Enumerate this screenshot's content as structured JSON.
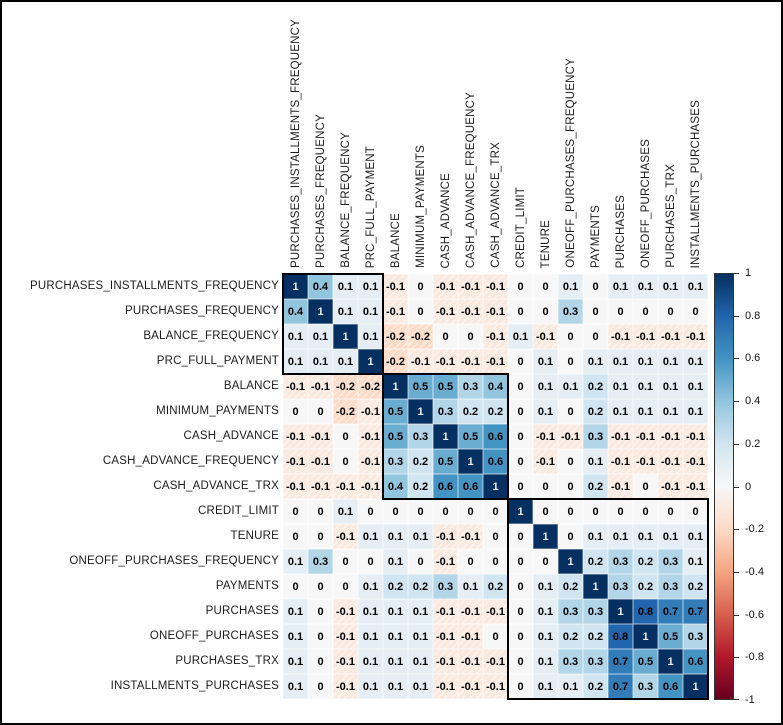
{
  "chart_data": {
    "type": "heatmap",
    "title": "",
    "description": "Correlation matrix heatmap with three diagonal cluster boxes, RdBu colormap, negative cells hatched",
    "labels": [
      "PURCHASES_INSTALLMENTS_FREQUENCY",
      "PURCHASES_FREQUENCY",
      "BALANCE_FREQUENCY",
      "PRC_FULL_PAYMENT",
      "BALANCE",
      "MINIMUM_PAYMENTS",
      "CASH_ADVANCE",
      "CASH_ADVANCE_FREQUENCY",
      "CASH_ADVANCE_TRX",
      "CREDIT_LIMIT",
      "TENURE",
      "ONEOFF_PURCHASES_FREQUENCY",
      "PAYMENTS",
      "PURCHASES",
      "ONEOFF_PURCHASES",
      "PURCHASES_TRX",
      "INSTALLMENTS_PURCHASES"
    ],
    "matrix": [
      [
        1,
        0.4,
        0.1,
        0.1,
        -0.1,
        0,
        -0.1,
        -0.1,
        -0.1,
        0,
        0,
        0.1,
        0,
        0.1,
        0.1,
        0.1,
        0.1
      ],
      [
        0.4,
        1,
        0.1,
        0.1,
        -0.1,
        0,
        -0.1,
        -0.1,
        -0.1,
        0,
        0,
        0.3,
        0,
        0,
        0,
        0,
        0
      ],
      [
        0.1,
        0.1,
        1,
        0.1,
        -0.2,
        -0.2,
        0,
        0,
        -0.1,
        0.1,
        -0.1,
        0,
        0,
        -0.1,
        -0.1,
        -0.1,
        -0.1
      ],
      [
        0.1,
        0.1,
        0.1,
        1,
        -0.2,
        -0.1,
        -0.1,
        -0.1,
        -0.1,
        0,
        0.1,
        0,
        0.1,
        0.1,
        0.1,
        0.1,
        0.1
      ],
      [
        -0.1,
        -0.1,
        -0.2,
        -0.2,
        1,
        0.5,
        0.5,
        0.3,
        0.4,
        0,
        0.1,
        0.1,
        0.2,
        0.1,
        0.1,
        0.1,
        0.1
      ],
      [
        0,
        0,
        -0.2,
        -0.1,
        0.5,
        1,
        0.3,
        0.2,
        0.2,
        0,
        0.1,
        0,
        0.2,
        0.1,
        0.1,
        0.1,
        0.1
      ],
      [
        -0.1,
        -0.1,
        0,
        -0.1,
        0.5,
        0.3,
        1,
        0.5,
        0.6,
        0,
        -0.1,
        -0.1,
        0.3,
        -0.1,
        -0.1,
        -0.1,
        -0.1
      ],
      [
        -0.1,
        -0.1,
        0,
        -0.1,
        0.3,
        0.2,
        0.5,
        1,
        0.6,
        0,
        -0.1,
        0,
        0.1,
        -0.1,
        -0.1,
        -0.1,
        -0.1
      ],
      [
        -0.1,
        -0.1,
        -0.1,
        -0.1,
        0.4,
        0.2,
        0.6,
        0.6,
        1,
        0,
        0,
        0,
        0.2,
        -0.1,
        0,
        -0.1,
        -0.1
      ],
      [
        0,
        0,
        0.1,
        0,
        0,
        0,
        0,
        0,
        0,
        1,
        0,
        0,
        0,
        0,
        0,
        0,
        0
      ],
      [
        0,
        0,
        -0.1,
        0.1,
        0.1,
        0.1,
        -0.1,
        -0.1,
        0,
        0,
        1,
        0,
        0.1,
        0.1,
        0.1,
        0.1,
        0.1
      ],
      [
        0.1,
        0.3,
        0,
        0,
        0.1,
        0,
        -0.1,
        0,
        0,
        0,
        0,
        1,
        0.2,
        0.3,
        0.2,
        0.3,
        0.1
      ],
      [
        0,
        0,
        0,
        0.1,
        0.2,
        0.2,
        0.3,
        0.1,
        0.2,
        0,
        0.1,
        0.2,
        1,
        0.3,
        0.2,
        0.3,
        0.2
      ],
      [
        0.1,
        0,
        -0.1,
        0.1,
        0.1,
        0.1,
        -0.1,
        -0.1,
        -0.1,
        0,
        0.1,
        0.3,
        0.3,
        1,
        0.8,
        0.7,
        0.7
      ],
      [
        0.1,
        0,
        -0.1,
        0.1,
        0.1,
        0.1,
        -0.1,
        -0.1,
        0,
        0,
        0.1,
        0.2,
        0.2,
        0.8,
        1,
        0.5,
        0.3
      ],
      [
        0.1,
        0,
        -0.1,
        0.1,
        0.1,
        0.1,
        -0.1,
        -0.1,
        -0.1,
        0,
        0.1,
        0.3,
        0.3,
        0.7,
        0.5,
        1,
        0.6
      ],
      [
        0.1,
        0,
        -0.1,
        0.1,
        0.1,
        0.1,
        -0.1,
        -0.1,
        -0.1,
        0,
        0.1,
        0.1,
        0.2,
        0.7,
        0.3,
        0.6,
        1
      ]
    ],
    "value_range": [
      -1,
      1
    ],
    "colormap": {
      "name": "RdBu",
      "stops": [
        {
          "v": -1.0,
          "c": "#67001f"
        },
        {
          "v": -0.8,
          "c": "#b2182b"
        },
        {
          "v": -0.6,
          "c": "#d6604d"
        },
        {
          "v": -0.4,
          "c": "#f4a582"
        },
        {
          "v": -0.2,
          "c": "#fddbc7"
        },
        {
          "v": 0.0,
          "c": "#f7f7f7"
        },
        {
          "v": 0.2,
          "c": "#d1e5f0"
        },
        {
          "v": 0.4,
          "c": "#92c5de"
        },
        {
          "v": 0.6,
          "c": "#4393c3"
        },
        {
          "v": 0.8,
          "c": "#2166ac"
        },
        {
          "v": 1.0,
          "c": "#053061"
        }
      ]
    },
    "colorbar": {
      "position": "right",
      "ticks": [
        1,
        0.8,
        0.6,
        0.4,
        0.2,
        0,
        -0.2,
        -0.4,
        -0.6,
        -0.8,
        -1
      ]
    },
    "cluster_boxes": [
      {
        "row": 0,
        "col": 0,
        "size": 4
      },
      {
        "row": 4,
        "col": 4,
        "size": 5
      },
      {
        "row": 9,
        "col": 9,
        "size": 8
      }
    ],
    "negative_hatch": true,
    "cell_text_color": "#000000",
    "diagonal_text_color": "#ededed",
    "frame_border_color": "#000000",
    "background_color": "#ffffff"
  }
}
